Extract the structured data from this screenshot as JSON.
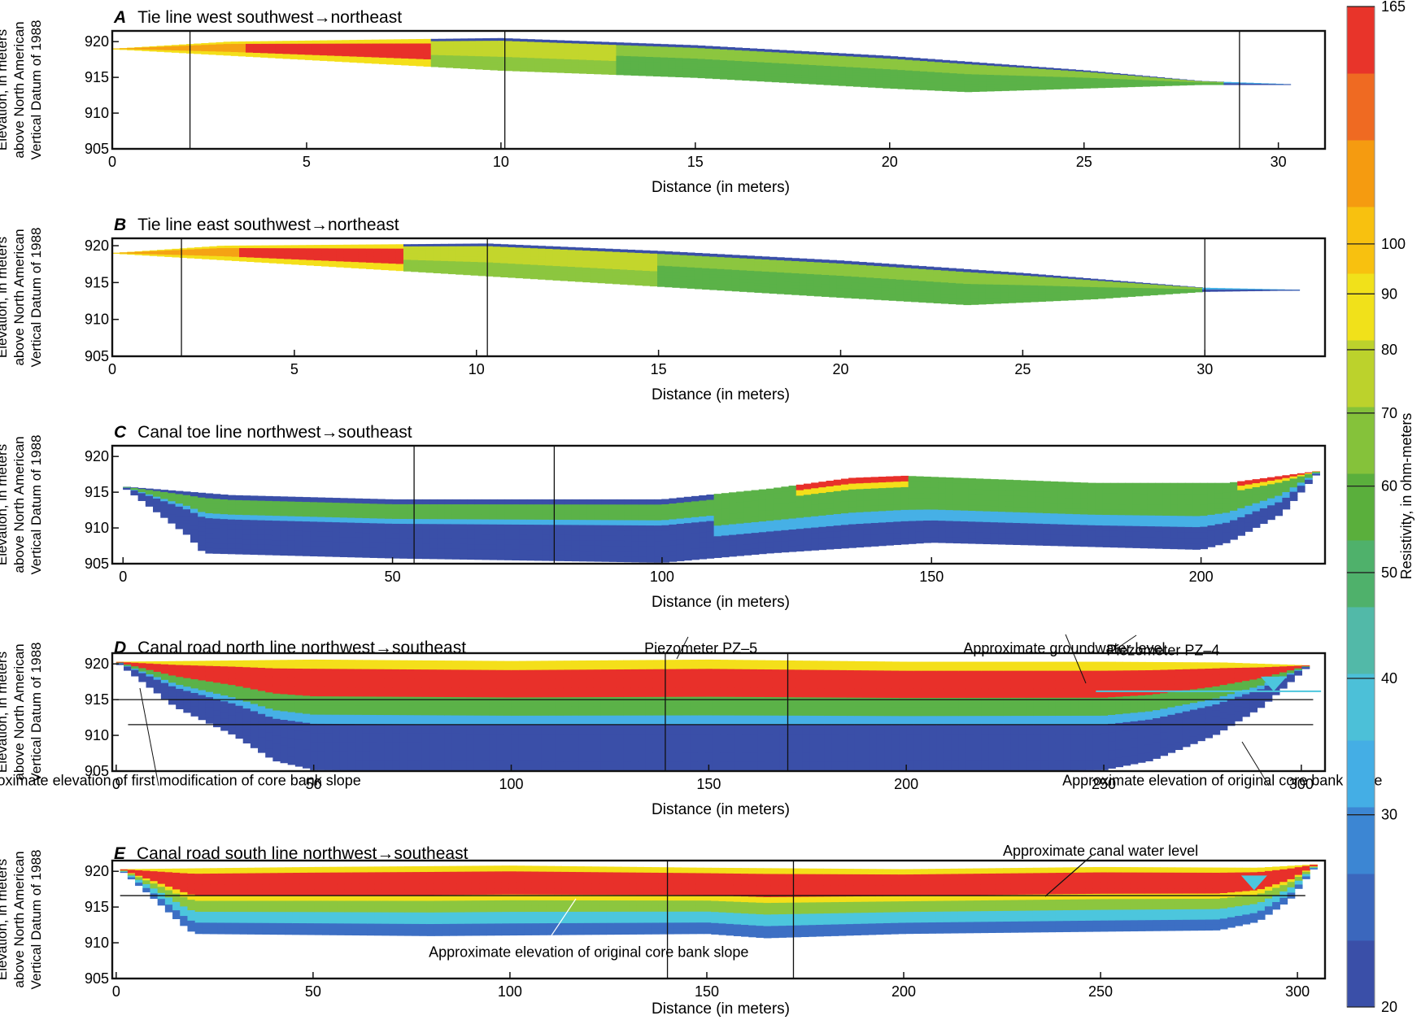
{
  "colorbar": {
    "label": "Resistivity, in ohm-meters",
    "ticks": [
      20,
      30,
      40,
      50,
      60,
      70,
      80,
      90,
      100,
      165
    ],
    "colors": [
      "#3a4fa8",
      "#3b67bd",
      "#3c86d3",
      "#44aee5",
      "#4cc0d8",
      "#52b9a8",
      "#4fb16b",
      "#5aaf3c",
      "#85c23a",
      "#bcd22c",
      "#f1e11a",
      "#f8c10f",
      "#f59b10",
      "#ef6a22",
      "#e8342a"
    ]
  },
  "shared": {
    "ylabel_lines": [
      "Elevation, in meters",
      "above North American",
      "Vertical Datum of 1988"
    ],
    "xlabel": "Distance (in meters)"
  },
  "chart_data": [
    {
      "type": "heatmap",
      "letter": "A",
      "title": "Tie line west southwest→northeast",
      "xlabel": "Distance (in meters)",
      "ylabel": "Elevation, in meters above North American Vertical Datum of 1988",
      "xlim": [
        0,
        31.2
      ],
      "ylim": [
        905,
        921.5
      ],
      "xticks": [
        0,
        5,
        10,
        15,
        20,
        25,
        30
      ],
      "yticks": [
        905,
        910,
        915,
        920
      ],
      "vlines": [
        2,
        10.1,
        29
      ],
      "top_profile": [
        [
          0,
          919
        ],
        [
          3,
          920
        ],
        [
          7,
          920.3
        ],
        [
          10,
          920.5
        ],
        [
          15,
          919.5
        ],
        [
          20,
          918
        ],
        [
          25,
          916
        ],
        [
          28,
          914.5
        ],
        [
          30.5,
          914
        ]
      ],
      "bottom_profile": [
        [
          0,
          919
        ],
        [
          5,
          917.5
        ],
        [
          10,
          916
        ],
        [
          15,
          915
        ],
        [
          20,
          913.5
        ],
        [
          22,
          913
        ],
        [
          25,
          913.5
        ],
        [
          28,
          914
        ],
        [
          30.5,
          914
        ]
      ],
      "resistivity_zones": [
        {
          "x": [
            1,
            8.2
          ],
          "level": "high"
        },
        {
          "x": [
            8.2,
            13
          ],
          "level": "moderate"
        },
        {
          "x": [
            13,
            28.5
          ],
          "level": "medium"
        },
        {
          "x": [
            28.5,
            30.5
          ],
          "level": "low"
        }
      ],
      "annotations": []
    },
    {
      "type": "heatmap",
      "letter": "B",
      "title": "Tie line east southwest→northeast",
      "xlabel": "Distance (in meters)",
      "ylabel": "Elevation, in meters above North American Vertical Datum of 1988",
      "xlim": [
        0,
        33.3
      ],
      "ylim": [
        905,
        921
      ],
      "xticks": [
        0,
        5,
        10,
        15,
        20,
        25,
        30
      ],
      "yticks": [
        905,
        910,
        915,
        920
      ],
      "vlines": [
        1.9,
        10.3,
        30
      ],
      "top_profile": [
        [
          0,
          919
        ],
        [
          3,
          920
        ],
        [
          8,
          920.2
        ],
        [
          10.3,
          920.3
        ],
        [
          15,
          919.3
        ],
        [
          20,
          918
        ],
        [
          25,
          916.3
        ],
        [
          30,
          914.3
        ],
        [
          32.8,
          914
        ]
      ],
      "bottom_profile": [
        [
          0,
          919
        ],
        [
          5,
          917.5
        ],
        [
          10,
          916
        ],
        [
          15,
          914.5
        ],
        [
          20,
          913
        ],
        [
          23.5,
          912
        ],
        [
          27,
          912.8
        ],
        [
          30,
          913.8
        ],
        [
          32.8,
          914
        ]
      ],
      "resistivity_zones": [
        {
          "x": [
            1.5,
            8
          ],
          "level": "high"
        },
        {
          "x": [
            8,
            15
          ],
          "level": "moderate"
        },
        {
          "x": [
            15,
            30
          ],
          "level": "medium"
        },
        {
          "x": [
            30,
            32.8
          ],
          "level": "low"
        }
      ],
      "annotations": []
    },
    {
      "type": "heatmap",
      "letter": "C",
      "title": "Canal toe line northwest→southeast",
      "xlabel": "Distance (in meters)",
      "ylabel": "Elevation, in meters above North American Vertical Datum of 1988",
      "xlim": [
        -2,
        223
      ],
      "ylim": [
        905,
        921.5
      ],
      "xticks": [
        0,
        50,
        100,
        150,
        200
      ],
      "yticks": [
        905,
        910,
        915,
        920
      ],
      "vlines": [
        54,
        80
      ],
      "top_profile": [
        [
          0,
          915.8
        ],
        [
          20,
          914.6
        ],
        [
          50,
          914
        ],
        [
          100,
          914
        ],
        [
          120,
          915.5
        ],
        [
          135,
          917
        ],
        [
          145,
          917.3
        ],
        [
          180,
          916.3
        ],
        [
          205,
          916.3
        ],
        [
          222,
          918
        ]
      ],
      "bottom_profile": [
        [
          0,
          915.8
        ],
        [
          12,
          909
        ],
        [
          15,
          906.5
        ],
        [
          50,
          905.8
        ],
        [
          100,
          905.2
        ],
        [
          120,
          906.5
        ],
        [
          150,
          908
        ],
        [
          200,
          907
        ],
        [
          205,
          908
        ],
        [
          215,
          912
        ],
        [
          222,
          918
        ]
      ],
      "resistivity_zones": [
        {
          "x": [
            0,
            110
          ],
          "level": "low"
        },
        {
          "x": [
            110,
            222
          ],
          "level": "medium"
        },
        {
          "x": [
            125,
            145
          ],
          "level": "high-top"
        },
        {
          "x": [
            208,
            222
          ],
          "level": "high-top"
        }
      ],
      "annotations": []
    },
    {
      "type": "heatmap",
      "letter": "D",
      "title": "Canal road north line northwest→southeast",
      "xlabel": "Distance (in meters)",
      "ylabel": "Elevation, in meters above North American Vertical Datum of 1988",
      "xlim": [
        -1,
        306
      ],
      "ylim": [
        905,
        921.5
      ],
      "xticks": [
        0,
        50,
        100,
        150,
        200,
        250,
        300
      ],
      "yticks": [
        905,
        910,
        915,
        920
      ],
      "vlines": [
        139,
        170
      ],
      "hlines": [
        {
          "x": [
            0,
            303
          ],
          "y": 915
        },
        {
          "x": [
            3,
            303
          ],
          "y": 911.5
        }
      ],
      "water_marker": {
        "x": 293,
        "y": 917.3,
        "line_x": [
          248,
          305
        ]
      },
      "top_profile": [
        [
          0,
          920.3
        ],
        [
          50,
          920.6
        ],
        [
          100,
          920.4
        ],
        [
          150,
          920.6
        ],
        [
          200,
          920.3
        ],
        [
          250,
          920.3
        ],
        [
          280,
          920.2
        ],
        [
          302,
          919.8
        ]
      ],
      "bottom_profile": [
        [
          0,
          920.3
        ],
        [
          15,
          914
        ],
        [
          30,
          910
        ],
        [
          40,
          906.5
        ],
        [
          50,
          905.2
        ],
        [
          150,
          905
        ],
        [
          250,
          905.2
        ],
        [
          262,
          906.5
        ],
        [
          278,
          910
        ],
        [
          290,
          914
        ],
        [
          302,
          919.8
        ]
      ],
      "resistivity_zones": [
        {
          "x": [
            0,
            302
          ],
          "level": "high-top"
        },
        {
          "x": [
            20,
            290
          ],
          "level": "low-bottom"
        }
      ],
      "annotations": [
        {
          "text": "Piezometer PZ–5",
          "x": 148,
          "y": 921.5
        },
        {
          "text": "Approximate groundwater level",
          "x": 240,
          "y": 921.5
        },
        {
          "text": "Piezometer PZ–4",
          "x": 265,
          "y": 921.2
        },
        {
          "text": "Approximate elevation of first modification of core bank slope",
          "x": 12,
          "y": 903
        },
        {
          "text": "Approximate elevation of original core bank slope",
          "x": 280,
          "y": 903
        }
      ]
    },
    {
      "type": "heatmap",
      "letter": "E",
      "title": "Canal road south line northwest→southeast",
      "xlabel": "Distance (in meters)",
      "ylabel": "Elevation, in meters above North American Vertical Datum of 1988",
      "xlim": [
        -1,
        307
      ],
      "ylim": [
        905,
        921.5
      ],
      "xticks": [
        0,
        50,
        100,
        150,
        200,
        250,
        300
      ],
      "yticks": [
        905,
        910,
        915,
        920
      ],
      "vlines": [
        140,
        172
      ],
      "hlines": [
        {
          "x": [
            1,
            302
          ],
          "y": 916.6
        }
      ],
      "water_marker": {
        "x": 289,
        "y": 918.5
      },
      "top_profile": [
        [
          1,
          920.3
        ],
        [
          50,
          920.6
        ],
        [
          100,
          920.8
        ],
        [
          150,
          920.5
        ],
        [
          200,
          920.3
        ],
        [
          250,
          920.6
        ],
        [
          290,
          920.5
        ],
        [
          305,
          921
        ]
      ],
      "bottom_profile": [
        [
          1,
          920.3
        ],
        [
          10,
          916
        ],
        [
          18,
          912
        ],
        [
          20,
          911.3
        ],
        [
          80,
          911
        ],
        [
          150,
          911.3
        ],
        [
          165,
          910.7
        ],
        [
          200,
          911.3
        ],
        [
          280,
          911.8
        ],
        [
          290,
          913
        ],
        [
          298,
          916
        ],
        [
          305,
          921
        ]
      ],
      "resistivity_zones": [
        {
          "x": [
            1,
            305
          ],
          "level": "high-top"
        },
        {
          "x": [
            1,
            305
          ],
          "level": "medium-bottom"
        }
      ],
      "annotations": [
        {
          "text": "Approximate canal water level",
          "x": 250,
          "y": 922.2
        },
        {
          "text": "Approximate elevation of original core bank slope",
          "x": 120,
          "y": 908
        }
      ]
    }
  ]
}
